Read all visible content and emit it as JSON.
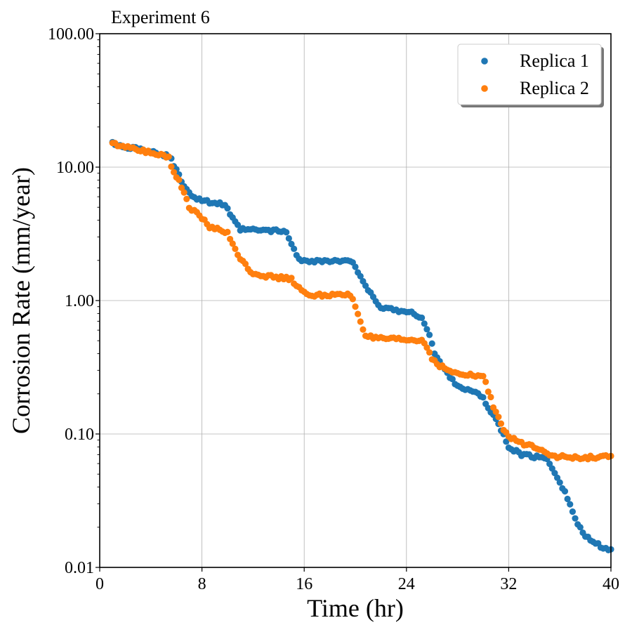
{
  "chart_data": {
    "type": "scatter",
    "title": "Experiment 6",
    "xlabel": "Time (hr)",
    "ylabel": "Corrosion Rate (mm/year)",
    "xlim": [
      0,
      40
    ],
    "ylim": [
      0.01,
      100
    ],
    "yscale": "log",
    "grid": true,
    "legend_position": "top-right",
    "x_ticks": [
      0,
      8,
      16,
      24,
      32,
      40
    ],
    "x_tick_labels": [
      "0",
      "8",
      "16",
      "24",
      "32",
      "40"
    ],
    "y_ticks": [
      0.01,
      0.1,
      1,
      10,
      100
    ],
    "y_tick_labels": [
      "0.01",
      "0.10",
      "1.00",
      "10.00",
      "100.00"
    ],
    "segments": {
      "Replica 1": [
        [
          1.0,
          15.0
        ],
        [
          5.5,
          12.0
        ],
        [
          6.0,
          9.5
        ],
        [
          6.7,
          7.0
        ],
        [
          7.5,
          5.8
        ],
        [
          9.8,
          5.2
        ],
        [
          10.3,
          4.2
        ],
        [
          11.0,
          3.4
        ],
        [
          14.5,
          3.3
        ],
        [
          15.2,
          2.5
        ],
        [
          15.5,
          2.0
        ],
        [
          19.8,
          1.95
        ],
        [
          20.3,
          1.6
        ],
        [
          21.0,
          1.2
        ],
        [
          21.8,
          0.9
        ],
        [
          24.5,
          0.8
        ],
        [
          25.2,
          0.75
        ],
        [
          25.8,
          0.55
        ],
        [
          26.2,
          0.4
        ],
        [
          27.0,
          0.3
        ],
        [
          28.0,
          0.23
        ],
        [
          29.5,
          0.2
        ],
        [
          30.0,
          0.19
        ],
        [
          30.5,
          0.15
        ],
        [
          31.0,
          0.13
        ],
        [
          32.0,
          0.08
        ],
        [
          33.0,
          0.07
        ],
        [
          35.0,
          0.065
        ],
        [
          35.7,
          0.05
        ],
        [
          36.5,
          0.035
        ],
        [
          37.3,
          0.022
        ],
        [
          38.0,
          0.017
        ],
        [
          38.8,
          0.015
        ],
        [
          40.0,
          0.0135
        ]
      ],
      "Replica 2": [
        [
          1.0,
          15.0
        ],
        [
          5.4,
          12.0
        ],
        [
          5.6,
          10.0
        ],
        [
          6.2,
          8.0
        ],
        [
          6.7,
          6.0
        ],
        [
          7.0,
          5.0
        ],
        [
          8.2,
          4.0
        ],
        [
          8.5,
          3.6
        ],
        [
          10.0,
          3.2
        ],
        [
          10.3,
          2.8
        ],
        [
          10.7,
          2.3
        ],
        [
          11.5,
          1.8
        ],
        [
          12.0,
          1.6
        ],
        [
          13.5,
          1.5
        ],
        [
          15.0,
          1.45
        ],
        [
          15.7,
          1.2
        ],
        [
          16.2,
          1.1
        ],
        [
          19.7,
          1.1
        ],
        [
          20.0,
          0.9
        ],
        [
          20.3,
          0.75
        ],
        [
          20.8,
          0.55
        ],
        [
          21.5,
          0.52
        ],
        [
          25.3,
          0.5
        ],
        [
          25.6,
          0.45
        ],
        [
          26.0,
          0.37
        ],
        [
          26.5,
          0.33
        ],
        [
          27.3,
          0.3
        ],
        [
          28.0,
          0.28
        ],
        [
          30.0,
          0.27
        ],
        [
          30.5,
          0.2
        ],
        [
          30.8,
          0.16
        ],
        [
          31.3,
          0.13
        ],
        [
          31.6,
          0.11
        ],
        [
          32.0,
          0.095
        ],
        [
          33.0,
          0.085
        ],
        [
          34.5,
          0.078
        ],
        [
          35.5,
          0.068
        ],
        [
          37.5,
          0.066
        ],
        [
          40.0,
          0.068
        ]
      ]
    },
    "sample_spacing_hr": 0.2,
    "series": [
      {
        "name": "Replica 1",
        "color": "#1f77b4"
      },
      {
        "name": "Replica 2",
        "color": "#ff7f0e"
      }
    ]
  }
}
